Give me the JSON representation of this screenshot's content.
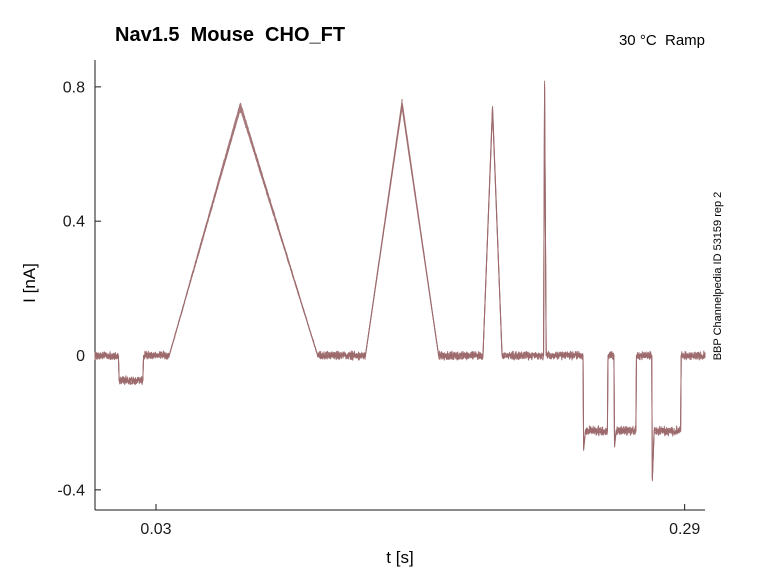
{
  "chart_data": {
    "type": "line",
    "title": "Nav1.5  Mouse  CHO_FT",
    "subtitle": "30 °C  Ramp",
    "xlabel": "t [s]",
    "ylabel": "I [nA]",
    "side_label": "BBP Channelpedia ID 53159 rep 2",
    "xlim": [
      0.0,
      0.3
    ],
    "ylim": [
      -0.46,
      0.88
    ],
    "xticks": [
      0.03,
      0.29
    ],
    "xtick_labels": [
      "0.03",
      "0.29"
    ],
    "yticks": [
      -0.4,
      0,
      0.4,
      0.8
    ],
    "ytick_labels": [
      "-0.4",
      "0",
      "0.4",
      "0.8"
    ],
    "grid": false,
    "legend": "none",
    "line_color": "#9c696b",
    "axis_color": "#1a1a1a",
    "background_color": "#ffffff",
    "n_sweeps": 3,
    "noise_amplitude": 0.009,
    "series": [
      {
        "name": "current-trace",
        "unit": "nA",
        "description": "whole-cell ramp current, overlapping sweeps, piecewise-linear waypoints [t_s, I_nA]",
        "waypoints": [
          [
            0.0,
            0
          ],
          [
            0.0115,
            0
          ],
          [
            0.0119,
            -0.075
          ],
          [
            0.0235,
            -0.075
          ],
          [
            0.0239,
            0
          ],
          [
            0.0365,
            0
          ],
          [
            0.0715,
            0.745
          ],
          [
            0.1095,
            0
          ],
          [
            0.133,
            0
          ],
          [
            0.151,
            0.75
          ],
          [
            0.169,
            0
          ],
          [
            0.1908,
            0
          ],
          [
            0.1955,
            0.74
          ],
          [
            0.2002,
            0
          ],
          [
            0.2206,
            0
          ],
          [
            0.2211,
            0.81
          ],
          [
            0.2216,
            0.3
          ],
          [
            0.2219,
            0
          ],
          [
            0.24,
            0
          ],
          [
            0.2403,
            -0.28
          ],
          [
            0.2412,
            -0.225
          ],
          [
            0.252,
            -0.225
          ],
          [
            0.2523,
            0
          ],
          [
            0.2552,
            0
          ],
          [
            0.2555,
            -0.27
          ],
          [
            0.2563,
            -0.225
          ],
          [
            0.266,
            -0.225
          ],
          [
            0.2663,
            0
          ],
          [
            0.2738,
            0
          ],
          [
            0.2741,
            -0.37
          ],
          [
            0.275,
            -0.225
          ],
          [
            0.288,
            -0.225
          ],
          [
            0.2883,
            0
          ],
          [
            0.3,
            0
          ]
        ]
      }
    ]
  }
}
